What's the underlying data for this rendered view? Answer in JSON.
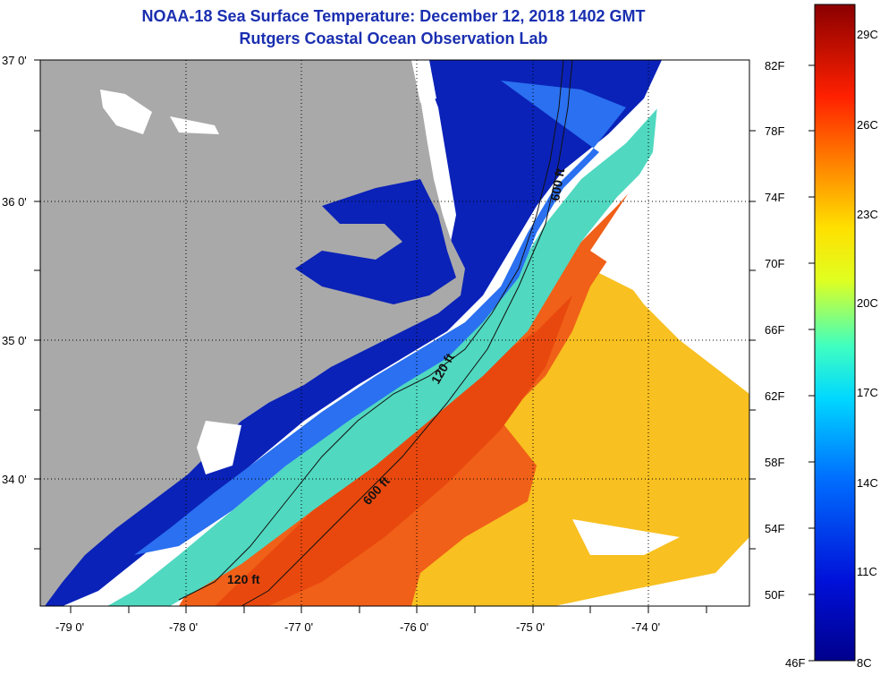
{
  "title_line1": "NOAA-18 Sea Surface Temperature:  December 12, 2018 1402 GMT",
  "title_line2": "Rutgers Coastal Ocean Observation Lab",
  "lat_labels": [
    "37 0'",
    "36 0'",
    "35 0'",
    "34 0'"
  ],
  "lon_labels": [
    "-79 0'",
    "-78 0'",
    "-77 0'",
    "-76 0'",
    "-75 0'",
    "-74 0'"
  ],
  "contour_labels": [
    "600 ft",
    "120 ft",
    "600 ft",
    "120 ft"
  ],
  "colorbar": {
    "fahrenheit": [
      "82F",
      "78F",
      "74F",
      "70F",
      "66F",
      "62F",
      "58F",
      "54F",
      "50F",
      "46F"
    ],
    "celsius": [
      "29C",
      "26C",
      "23C",
      "20C",
      "17C",
      "14C",
      "11C",
      "8C"
    ]
  },
  "colors": {
    "land": "#a9a9a9",
    "title": "#1a2fb0",
    "cold": "#0a1a9a",
    "warm": "#e85010"
  }
}
